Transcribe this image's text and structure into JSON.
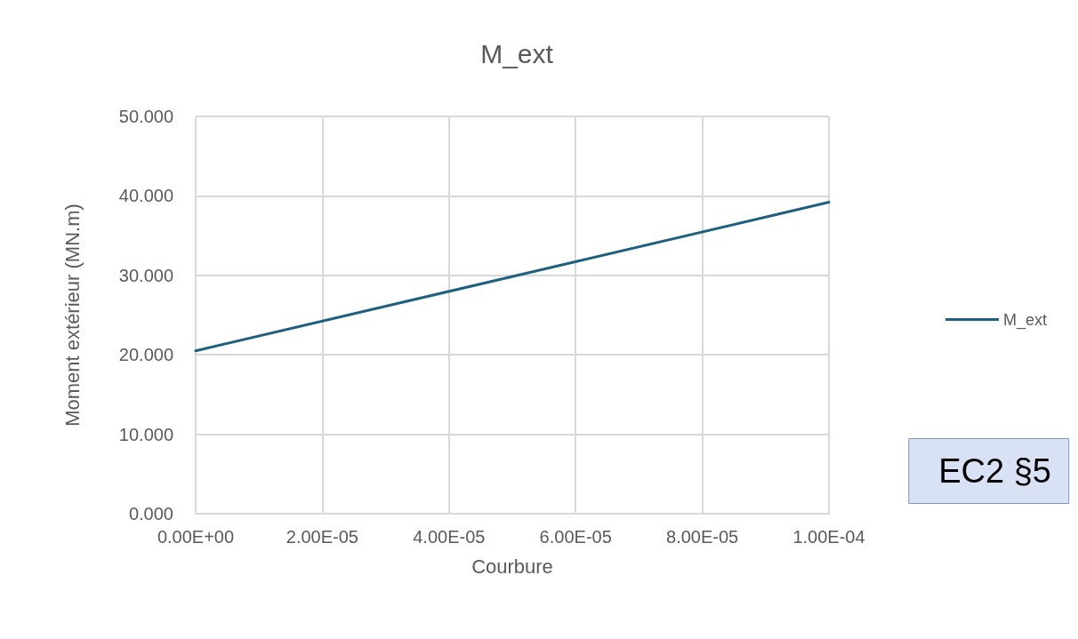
{
  "chart_data": {
    "type": "line",
    "title": "M_ext",
    "xlabel": "Courbure",
    "ylabel": "Moment extérieur (MN.m)",
    "x": [
      0,
      0.0001
    ],
    "series": [
      {
        "name": "M_ext",
        "color": "#1f5f80",
        "values": [
          20.5,
          39.2
        ]
      }
    ],
    "xlim": [
      0,
      0.0001
    ],
    "xticks": [
      {
        "value": 0,
        "label": "0.00E+00"
      },
      {
        "value": 2e-05,
        "label": "2.00E-05"
      },
      {
        "value": 4e-05,
        "label": "4.00E-05"
      },
      {
        "value": 6e-05,
        "label": "6.00E-05"
      },
      {
        "value": 8e-05,
        "label": "8.00E-05"
      },
      {
        "value": 0.0001,
        "label": "1.00E-04"
      }
    ],
    "ylim": [
      0,
      50
    ],
    "yticks": [
      {
        "value": 0,
        "label": "0.000"
      },
      {
        "value": 10,
        "label": "10.000"
      },
      {
        "value": 20,
        "label": "20.000"
      },
      {
        "value": 30,
        "label": "30.000"
      },
      {
        "value": 40,
        "label": "40.000"
      },
      {
        "value": 50,
        "label": "50.000"
      }
    ],
    "grid": true,
    "legend": "right",
    "marker": "none",
    "line_style": "solid",
    "annotations": [
      "EC2 §5"
    ]
  }
}
